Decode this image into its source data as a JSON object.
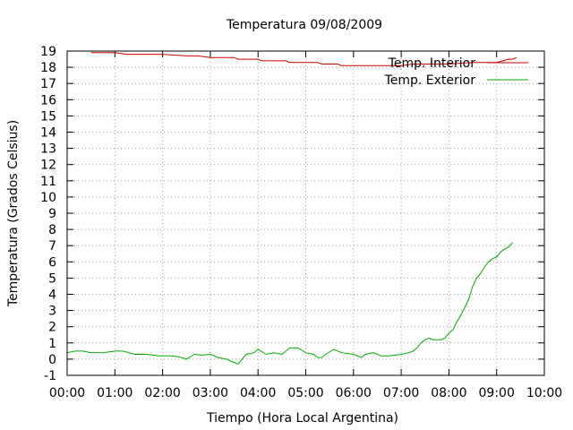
{
  "chart_data": {
    "type": "line",
    "title": "Temperatura 09/08/2009",
    "xlabel": "Tiempo (Hora Local Argentina)",
    "ylabel": "Temperatura (Grados Celsius)",
    "xlim": [
      "00:00",
      "10:00"
    ],
    "ylim": [
      -1,
      19
    ],
    "x_ticks": [
      "00:00",
      "01:00",
      "02:00",
      "03:00",
      "04:00",
      "05:00",
      "06:00",
      "07:00",
      "08:00",
      "09:00",
      "10:00"
    ],
    "y_ticks": [
      "-1",
      "0",
      "1",
      "2",
      "3",
      "4",
      "5",
      "6",
      "7",
      "8",
      "9",
      "10",
      "11",
      "12",
      "13",
      "14",
      "15",
      "16",
      "17",
      "18",
      "19"
    ],
    "grid": true,
    "legend_position": "top-right",
    "series": [
      {
        "name": "Temp. Interior",
        "color": "#cc0000",
        "points": [
          [
            "00:30",
            18.9
          ],
          [
            "01:00",
            18.9
          ],
          [
            "01:15",
            18.8
          ],
          [
            "01:45",
            18.8
          ],
          [
            "02:00",
            18.8
          ],
          [
            "02:30",
            18.7
          ],
          [
            "02:45",
            18.7
          ],
          [
            "03:00",
            18.6
          ],
          [
            "03:30",
            18.6
          ],
          [
            "03:35",
            18.5
          ],
          [
            "04:00",
            18.5
          ],
          [
            "04:05",
            18.4
          ],
          [
            "04:35",
            18.4
          ],
          [
            "04:40",
            18.3
          ],
          [
            "05:15",
            18.3
          ],
          [
            "05:20",
            18.2
          ],
          [
            "05:40",
            18.2
          ],
          [
            "05:45",
            18.1
          ],
          [
            "06:30",
            18.1
          ],
          [
            "07:00",
            18.1
          ],
          [
            "07:15",
            18.2
          ],
          [
            "08:00",
            18.2
          ],
          [
            "08:30",
            18.3
          ],
          [
            "09:00",
            18.3
          ],
          [
            "09:15",
            18.5
          ],
          [
            "09:20",
            18.5
          ],
          [
            "09:25",
            18.6
          ]
        ]
      },
      {
        "name": "Temp. Exterior",
        "color": "#00aa00",
        "points": [
          [
            "00:00",
            0.4
          ],
          [
            "00:10",
            0.5
          ],
          [
            "00:20",
            0.5
          ],
          [
            "00:30",
            0.4
          ],
          [
            "00:45",
            0.4
          ],
          [
            "01:00",
            0.5
          ],
          [
            "01:10",
            0.5
          ],
          [
            "01:25",
            0.3
          ],
          [
            "01:40",
            0.3
          ],
          [
            "01:55",
            0.2
          ],
          [
            "02:10",
            0.2
          ],
          [
            "02:20",
            0.15
          ],
          [
            "02:30",
            0.0
          ],
          [
            "02:40",
            0.3
          ],
          [
            "02:50",
            0.25
          ],
          [
            "03:00",
            0.3
          ],
          [
            "03:10",
            0.1
          ],
          [
            "03:20",
            0.0
          ],
          [
            "03:30",
            -0.2
          ],
          [
            "03:35",
            -0.3
          ],
          [
            "03:45",
            0.3
          ],
          [
            "03:55",
            0.4
          ],
          [
            "04:00",
            0.6
          ],
          [
            "04:10",
            0.3
          ],
          [
            "04:20",
            0.4
          ],
          [
            "04:30",
            0.3
          ],
          [
            "04:40",
            0.7
          ],
          [
            "04:50",
            0.7
          ],
          [
            "05:00",
            0.4
          ],
          [
            "05:10",
            0.3
          ],
          [
            "05:15",
            0.1
          ],
          [
            "05:20",
            0.1
          ],
          [
            "05:25",
            0.3
          ],
          [
            "05:35",
            0.6
          ],
          [
            "05:45",
            0.4
          ],
          [
            "06:00",
            0.3
          ],
          [
            "06:10",
            0.1
          ],
          [
            "06:15",
            0.3
          ],
          [
            "06:25",
            0.4
          ],
          [
            "06:35",
            0.2
          ],
          [
            "06:45",
            0.2
          ],
          [
            "07:00",
            0.3
          ],
          [
            "07:10",
            0.4
          ],
          [
            "07:15",
            0.5
          ],
          [
            "07:20",
            0.7
          ],
          [
            "07:25",
            1.0
          ],
          [
            "07:30",
            1.2
          ],
          [
            "07:35",
            1.3
          ],
          [
            "07:40",
            1.2
          ],
          [
            "07:50",
            1.2
          ],
          [
            "07:55",
            1.3
          ],
          [
            "08:00",
            1.6
          ],
          [
            "08:05",
            1.8
          ],
          [
            "08:10",
            2.3
          ],
          [
            "08:15",
            2.7
          ],
          [
            "08:20",
            3.2
          ],
          [
            "08:25",
            3.7
          ],
          [
            "08:30",
            4.5
          ],
          [
            "08:35",
            5.0
          ],
          [
            "08:40",
            5.3
          ],
          [
            "08:45",
            5.7
          ],
          [
            "08:50",
            6.0
          ],
          [
            "08:55",
            6.2
          ],
          [
            "09:00",
            6.3
          ],
          [
            "09:05",
            6.6
          ],
          [
            "09:10",
            6.8
          ],
          [
            "09:15",
            6.9
          ],
          [
            "09:20",
            7.2
          ]
        ]
      }
    ]
  }
}
